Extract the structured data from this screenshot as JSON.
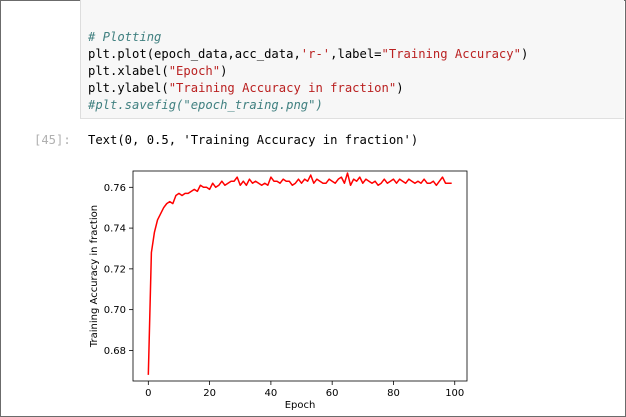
{
  "notebook": {
    "code_lines": [
      "# Plotting",
      "plt.plot(epoch_data,acc_data,'r-',label=\"Training Accuracy\")",
      "plt.xlabel(\"Epoch\")",
      "plt.ylabel(\"Training Accuracy in fraction\")",
      "#plt.savefig(\"epoch_traing.png\")"
    ],
    "output_prompt": "[45]:",
    "output_text": "Text(0, 0.5, 'Training Accuracy in fraction')"
  },
  "chart_data": {
    "type": "line",
    "xlabel": "Epoch",
    "ylabel": "Training Accuracy in fraction",
    "xlim": [
      -5,
      104
    ],
    "ylim": [
      0.665,
      0.768
    ],
    "xticks": [
      0,
      20,
      40,
      60,
      80,
      100
    ],
    "yticks": [
      0.68,
      0.7,
      0.72,
      0.74,
      0.76
    ],
    "grid": false,
    "series": [
      {
        "color": "#ff0000",
        "x": [
          0,
          1,
          2,
          3,
          4,
          5,
          6,
          7,
          8,
          9,
          10,
          11,
          12,
          13,
          14,
          15,
          16,
          17,
          18,
          19,
          20,
          21,
          22,
          23,
          24,
          25,
          26,
          27,
          28,
          29,
          30,
          31,
          32,
          33,
          34,
          35,
          36,
          37,
          38,
          39,
          40,
          41,
          42,
          43,
          44,
          45,
          46,
          47,
          48,
          49,
          50,
          51,
          52,
          53,
          54,
          55,
          56,
          57,
          58,
          59,
          60,
          61,
          62,
          63,
          64,
          65,
          66,
          67,
          68,
          69,
          70,
          71,
          72,
          73,
          74,
          75,
          76,
          77,
          78,
          79,
          80,
          81,
          82,
          83,
          84,
          85,
          86,
          87,
          88,
          89,
          90,
          91,
          92,
          93,
          94,
          95,
          96,
          97,
          98,
          99
        ],
        "values": [
          0.668,
          0.728,
          0.738,
          0.744,
          0.747,
          0.75,
          0.752,
          0.753,
          0.752,
          0.756,
          0.757,
          0.756,
          0.757,
          0.757,
          0.758,
          0.759,
          0.758,
          0.761,
          0.76,
          0.76,
          0.759,
          0.762,
          0.76,
          0.761,
          0.763,
          0.761,
          0.762,
          0.763,
          0.763,
          0.765,
          0.761,
          0.763,
          0.761,
          0.764,
          0.762,
          0.763,
          0.762,
          0.761,
          0.762,
          0.761,
          0.765,
          0.763,
          0.763,
          0.762,
          0.764,
          0.763,
          0.763,
          0.761,
          0.762,
          0.764,
          0.762,
          0.764,
          0.763,
          0.766,
          0.762,
          0.764,
          0.763,
          0.762,
          0.762,
          0.764,
          0.763,
          0.762,
          0.764,
          0.765,
          0.762,
          0.767,
          0.761,
          0.764,
          0.763,
          0.765,
          0.762,
          0.764,
          0.763,
          0.762,
          0.763,
          0.761,
          0.762,
          0.764,
          0.762,
          0.763,
          0.764,
          0.762,
          0.764,
          0.763,
          0.762,
          0.764,
          0.763,
          0.762,
          0.763,
          0.762,
          0.764,
          0.762,
          0.762,
          0.763,
          0.761,
          0.763,
          0.765,
          0.762,
          0.762,
          0.762
        ]
      }
    ]
  }
}
